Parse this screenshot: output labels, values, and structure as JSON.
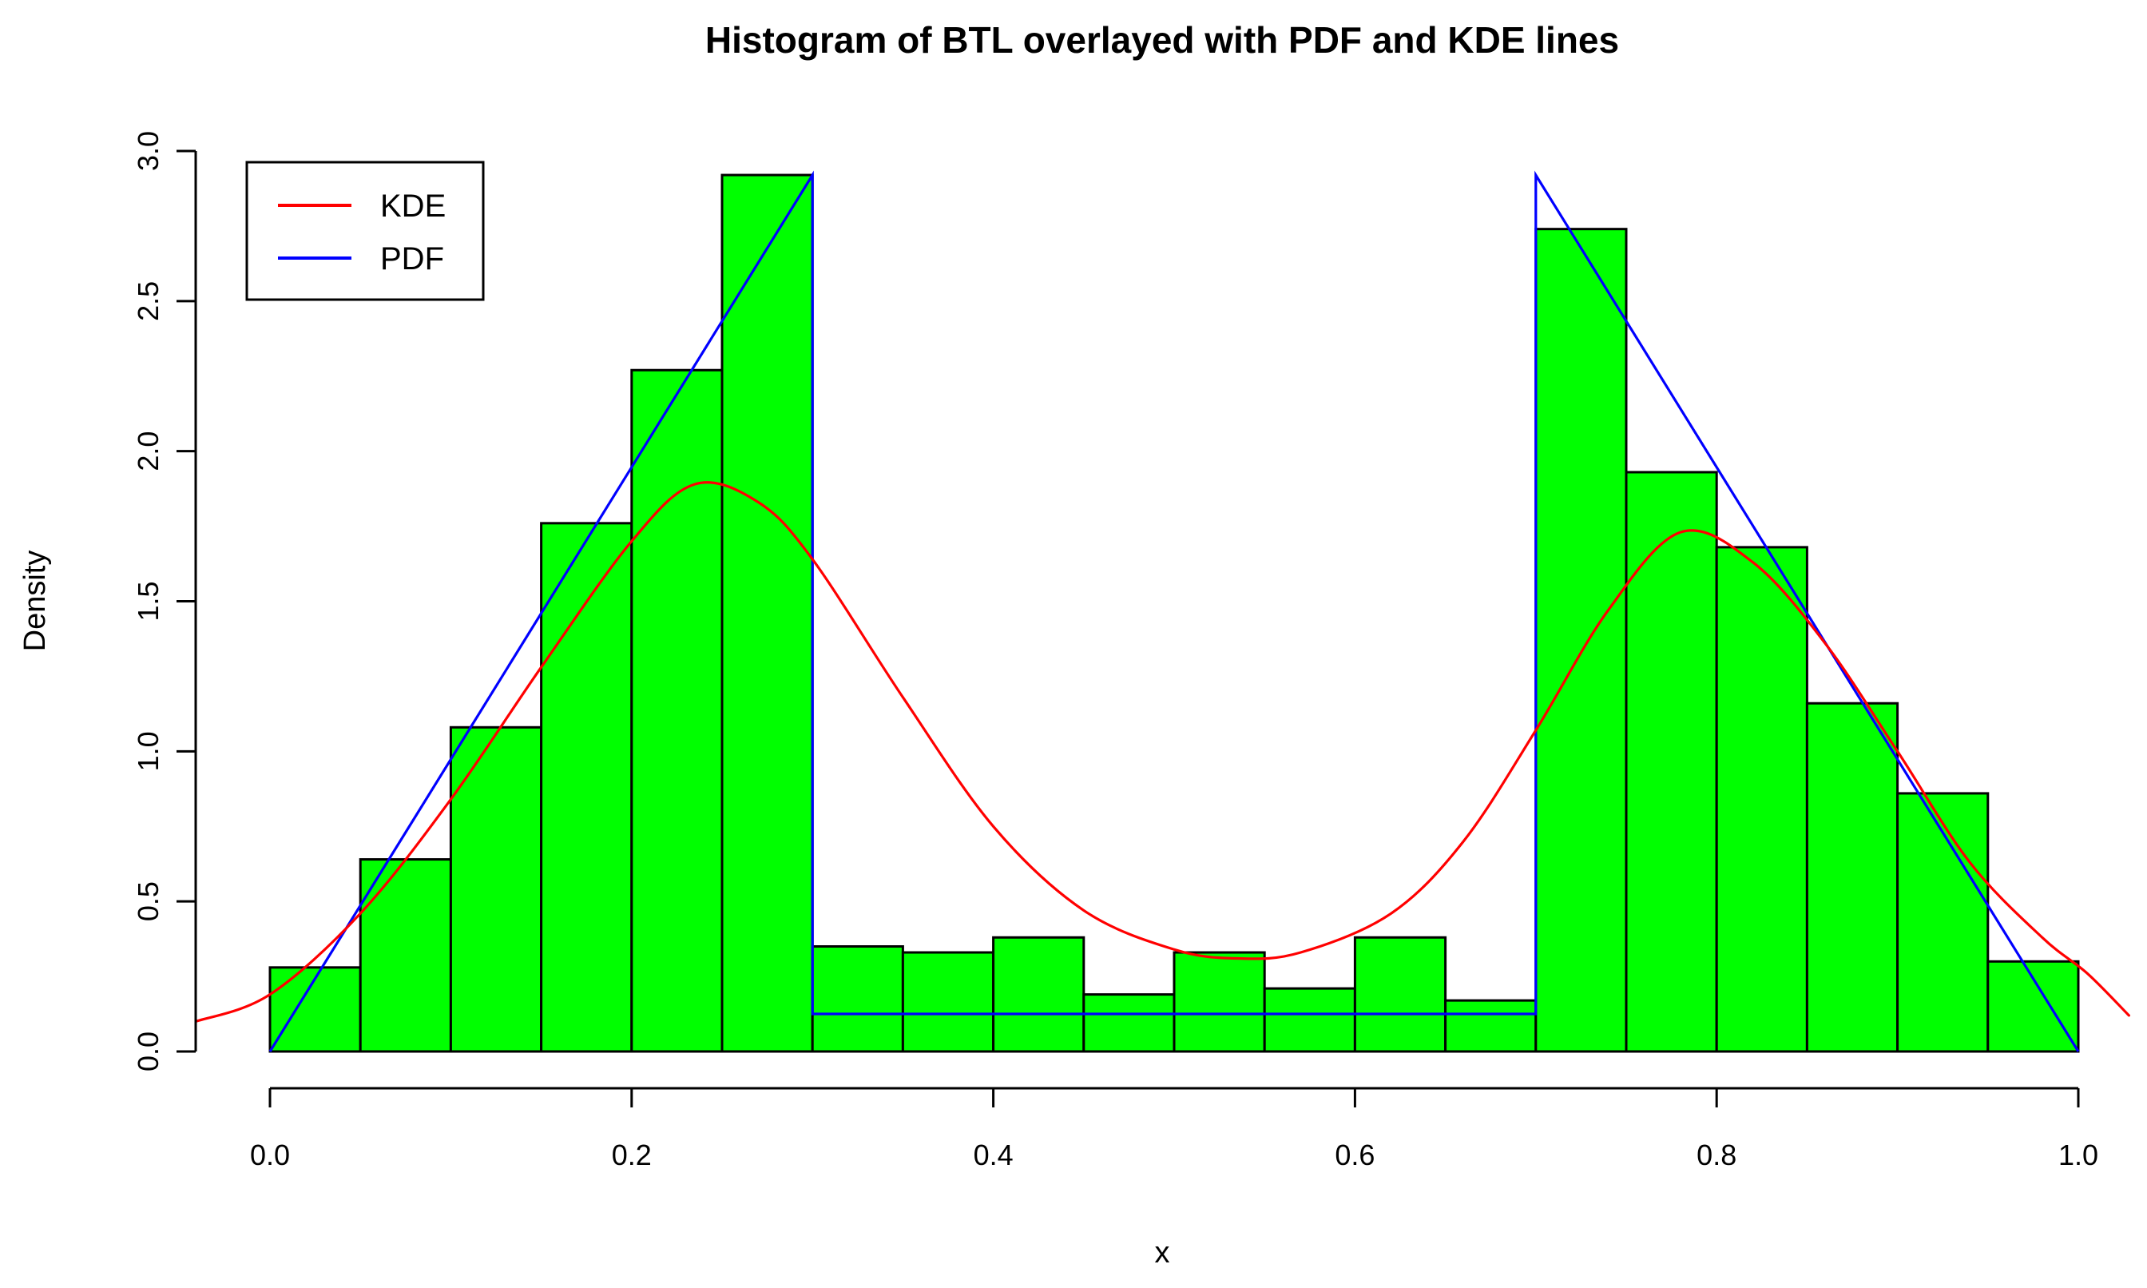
{
  "title": "Histogram of BTL overlayed with PDF and KDE lines",
  "axes": {
    "x_label": "x",
    "y_label": "Density",
    "x_range": [
      0.0,
      1.0
    ],
    "y_range": [
      0.0,
      3.0
    ],
    "x_tick_values": [
      0.0,
      0.2,
      0.4,
      0.6,
      0.8,
      1.0
    ],
    "x_tick_labels": [
      "0.0",
      "0.2",
      "0.4",
      "0.6",
      "0.8",
      "1.0"
    ],
    "y_tick_values": [
      0.0,
      0.5,
      1.0,
      1.5,
      2.0,
      2.5,
      3.0
    ],
    "y_tick_labels": [
      "0.0",
      "0.5",
      "1.0",
      "1.5",
      "2.0",
      "2.5",
      "3.0"
    ],
    "axis_color": "#000000"
  },
  "legend": {
    "items": [
      {
        "label": "KDE",
        "color": "#ff0000"
      },
      {
        "label": "PDF",
        "color": "#0000ff"
      }
    ]
  },
  "chart_data": {
    "type": "bar",
    "subtype": "histogram-with-overlaid-lines",
    "title": "Histogram of BTL overlayed with PDF and KDE lines",
    "xlabel": "x",
    "ylabel": "Density",
    "xlim": [
      0.0,
      1.0
    ],
    "ylim": [
      0.0,
      3.0
    ],
    "grid": false,
    "legend_position": "top-left",
    "bin_width": 0.05,
    "bins_start": 0.0,
    "bar_fill_color": "#00ff00",
    "bar_edge_color": "#000000",
    "bin_left_edges": [
      0.0,
      0.05,
      0.1,
      0.15,
      0.2,
      0.25,
      0.3,
      0.35,
      0.4,
      0.45,
      0.5,
      0.55,
      0.6,
      0.65,
      0.7,
      0.75,
      0.8,
      0.85,
      0.9,
      0.95
    ],
    "bar_densities": [
      0.28,
      0.64,
      1.08,
      1.76,
      2.27,
      2.92,
      0.35,
      0.33,
      0.38,
      0.19,
      0.33,
      0.21,
      0.38,
      0.17,
      2.74,
      1.93,
      1.68,
      1.16,
      0.86,
      0.3
    ],
    "series": [
      {
        "name": "KDE",
        "type": "smooth-curve",
        "color": "#ff0000",
        "points": [
          [
            -0.041,
            0.1
          ],
          [
            0.0,
            0.19
          ],
          [
            0.05,
            0.46
          ],
          [
            0.1,
            0.84
          ],
          [
            0.15,
            1.28
          ],
          [
            0.2,
            1.7
          ],
          [
            0.235,
            1.89
          ],
          [
            0.27,
            1.83
          ],
          [
            0.3,
            1.64
          ],
          [
            0.35,
            1.18
          ],
          [
            0.4,
            0.75
          ],
          [
            0.45,
            0.47
          ],
          [
            0.5,
            0.34
          ],
          [
            0.535,
            0.31
          ],
          [
            0.57,
            0.33
          ],
          [
            0.62,
            0.46
          ],
          [
            0.66,
            0.7
          ],
          [
            0.7,
            1.07
          ],
          [
            0.74,
            1.47
          ],
          [
            0.78,
            1.73
          ],
          [
            0.82,
            1.63
          ],
          [
            0.86,
            1.36
          ],
          [
            0.9,
            1.0
          ],
          [
            0.94,
            0.63
          ],
          [
            0.98,
            0.38
          ],
          [
            1.005,
            0.26
          ],
          [
            1.028,
            0.12
          ]
        ]
      },
      {
        "name": "PDF",
        "type": "polyline",
        "color": "#0000ff",
        "points": [
          [
            0.0,
            0.0
          ],
          [
            0.3,
            2.92
          ],
          [
            0.3,
            0.125
          ],
          [
            0.7,
            0.125
          ],
          [
            0.7,
            2.92
          ],
          [
            1.0,
            0.0
          ]
        ]
      }
    ]
  }
}
